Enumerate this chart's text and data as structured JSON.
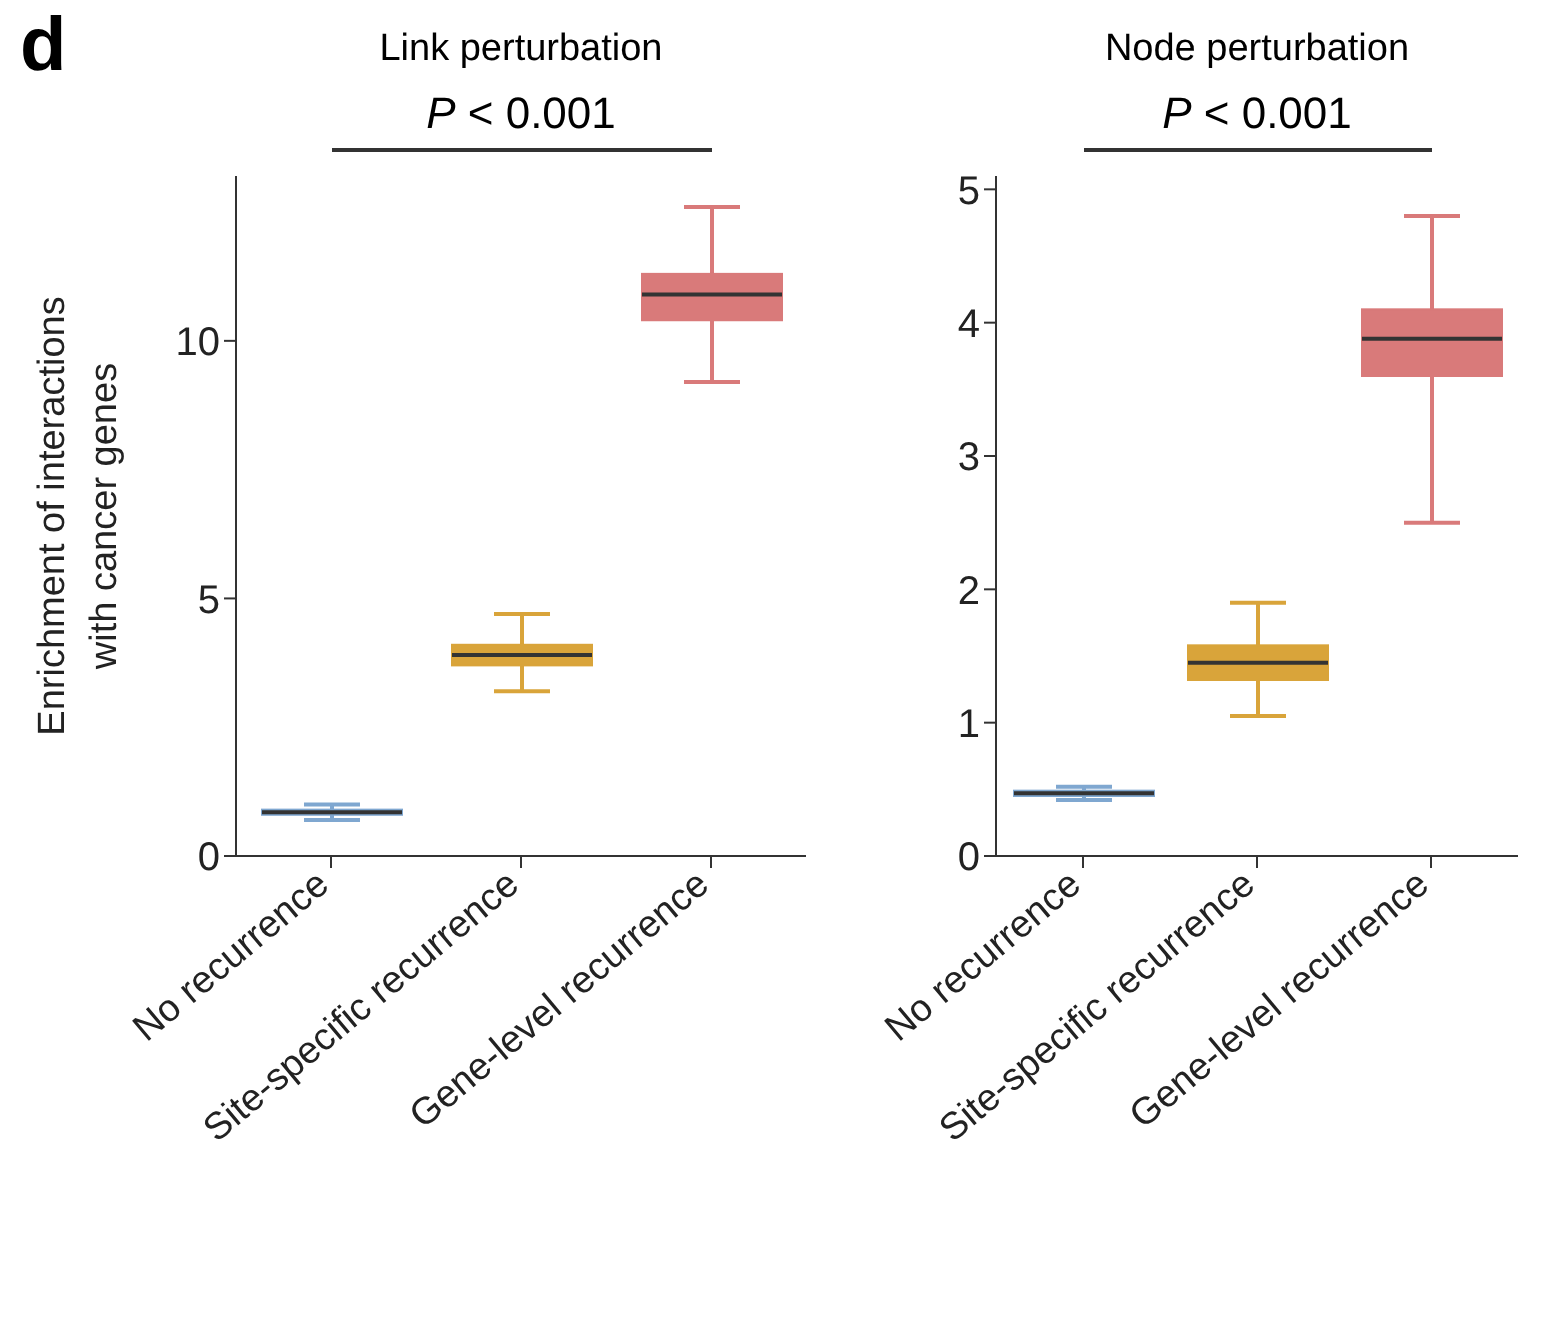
{
  "chart_data": [
    {
      "type": "box",
      "title": "Link perturbation",
      "ylabel": "Enrichment of interactions with cancer genes",
      "annotations": [
        "d",
        "P < 0.001"
      ],
      "categories": [
        "No recurrence",
        "Site-specific recurrence",
        "Gene-level recurrence"
      ],
      "colors": [
        "#7fa7d0",
        "#d9a43a",
        "#d97a7a"
      ],
      "ylim": [
        0,
        13.2
      ],
      "yticks": [
        0,
        5,
        10
      ],
      "grid": false,
      "boxes": [
        {
          "low": 0.7,
          "q1": 0.8,
          "median": 0.85,
          "q3": 0.9,
          "high": 1.0
        },
        {
          "low": 3.2,
          "q1": 3.7,
          "median": 3.9,
          "q3": 4.1,
          "high": 4.7
        },
        {
          "low": 9.2,
          "q1": 10.4,
          "median": 10.9,
          "q3": 11.3,
          "high": 12.6
        }
      ]
    },
    {
      "type": "box",
      "title": "Node perturbation",
      "annotations": [
        "P < 0.001"
      ],
      "categories": [
        "No recurrence",
        "Site-specific recurrence",
        "Gene-level recurrence"
      ],
      "colors": [
        "#7fa7d0",
        "#d9a43a",
        "#d97a7a"
      ],
      "ylim": [
        0,
        5.1
      ],
      "yticks": [
        0,
        1,
        2,
        3,
        4,
        5
      ],
      "grid": false,
      "boxes": [
        {
          "low": 0.42,
          "q1": 0.45,
          "median": 0.47,
          "q3": 0.49,
          "high": 0.52
        },
        {
          "low": 1.05,
          "q1": 1.32,
          "median": 1.45,
          "q3": 1.58,
          "high": 1.9
        },
        {
          "low": 2.5,
          "q1": 3.6,
          "median": 3.88,
          "q3": 4.1,
          "high": 4.8
        }
      ]
    }
  ]
}
